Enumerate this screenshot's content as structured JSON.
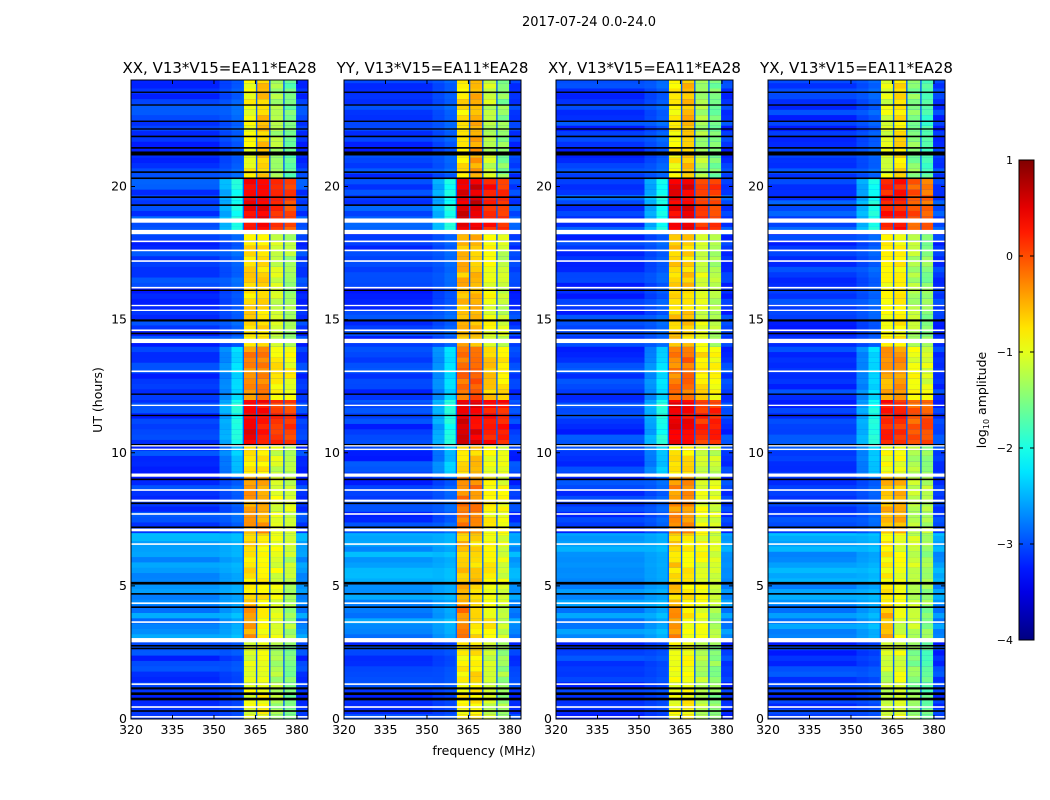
{
  "chart_data": {
    "type": "heatmap",
    "title": "2017-07-24 0.0-24.0",
    "xlabel": "frequency (MHz)",
    "ylabel": "UT (hours)",
    "xlim": [
      320,
      384
    ],
    "ylim": [
      0,
      24
    ],
    "xticks": [
      "320",
      "335",
      "350",
      "365",
      "380"
    ],
    "xtick_values": [
      320,
      335,
      350,
      365,
      380
    ],
    "yticks": [
      "0",
      "5",
      "10",
      "15",
      "20"
    ],
    "ytick_values": [
      0,
      5,
      10,
      15,
      20
    ],
    "colorbar": {
      "label": "log10 amplitude",
      "label_main": "log",
      "label_sub": "10",
      "label_rest": " amplitude",
      "range": [
        -4,
        1
      ],
      "ticks": [
        "−4",
        "−3",
        "−2",
        "−1",
        "0",
        "1"
      ],
      "tick_values": [
        -4,
        -3,
        -2,
        -1,
        0,
        1
      ],
      "colormap": "jet"
    },
    "panels": [
      {
        "title": "XX, V13*V15=EA11*EA28",
        "band_offset": 0.0
      },
      {
        "title": "YY, V13*V15=EA11*EA28",
        "band_offset": 0.15
      },
      {
        "title": "XY, V13*V15=EA11*EA28",
        "band_offset": 0.05
      },
      {
        "title": "YX, V13*V15=EA11*EA28",
        "band_offset": -0.15
      }
    ],
    "band_channels_mhz": [
      [
        360.6,
        365.4
      ],
      [
        365.4,
        370.2
      ],
      [
        370.2,
        375.3
      ],
      [
        375.3,
        379.9
      ]
    ],
    "edge_mhz": [
      352,
      360.6
    ],
    "segments": [
      {
        "t": [
          0,
          3.0
        ],
        "bg": -3.1,
        "edge": -3.0,
        "band": [
          -1.0,
          -0.9,
          -1.3,
          -1.5
        ]
      },
      {
        "t": [
          3.0,
          4.3
        ],
        "bg": -2.7,
        "edge": -2.5,
        "band": [
          -0.4,
          -0.9,
          -1.0,
          -1.3
        ]
      },
      {
        "t": [
          4.3,
          7.0
        ],
        "bg": -2.6,
        "edge": -2.5,
        "band": [
          -0.7,
          -0.8,
          -1.0,
          -1.2
        ]
      },
      {
        "t": [
          7.0,
          9.1
        ],
        "bg": -3.1,
        "edge": -2.9,
        "band": [
          -0.4,
          -0.4,
          -1.0,
          -1.1
        ]
      },
      {
        "t": [
          9.1,
          10.3
        ],
        "bg": -3.1,
        "edge": -2.4,
        "band": [
          -0.8,
          -0.8,
          -1.1,
          -1.2
        ]
      },
      {
        "t": [
          10.3,
          12.0
        ],
        "bg": -3.1,
        "edge": -2.0,
        "band": [
          0.4,
          0.3,
          0.1,
          0.1
        ]
      },
      {
        "t": [
          12.0,
          14.0
        ],
        "bg": -3.1,
        "edge": -2.3,
        "band": [
          -0.3,
          -0.2,
          -0.8,
          -0.9
        ]
      },
      {
        "t": [
          14.0,
          18.3
        ],
        "bg": -3.1,
        "edge": -2.9,
        "band": [
          -0.7,
          -0.7,
          -1.1,
          -1.3
        ]
      },
      {
        "t": [
          18.3,
          20.3
        ],
        "bg": -3.0,
        "edge": -2.0,
        "band": [
          0.4,
          0.4,
          0.1,
          0.0
        ]
      },
      {
        "t": [
          20.3,
          24.0
        ],
        "bg": -3.1,
        "edge": -2.9,
        "band": [
          -0.9,
          -0.6,
          -1.3,
          -1.6
        ]
      }
    ],
    "flagged_white_rows": [
      {
        "t": 0.08,
        "dt": 0.06
      },
      {
        "t": 0.45,
        "dt": 0.06
      },
      {
        "t": 1.31,
        "dt": 0.06
      },
      {
        "t": 2.96,
        "dt": 0.16
      },
      {
        "t": 3.64,
        "dt": 0.06
      },
      {
        "t": 4.35,
        "dt": 0.06
      },
      {
        "t": 6.57,
        "dt": 0.06
      },
      {
        "t": 7.1,
        "dt": 0.1
      },
      {
        "t": 7.7,
        "dt": 0.06
      },
      {
        "t": 8.2,
        "dt": 0.08
      },
      {
        "t": 8.6,
        "dt": 0.06
      },
      {
        "t": 9.16,
        "dt": 0.12
      },
      {
        "t": 10.13,
        "dt": 0.05
      },
      {
        "t": 10.26,
        "dt": 0.05
      },
      {
        "t": 11.78,
        "dt": 0.05
      },
      {
        "t": 13.06,
        "dt": 0.06
      },
      {
        "t": 14.2,
        "dt": 0.16
      },
      {
        "t": 14.6,
        "dt": 0.06
      },
      {
        "t": 15.35,
        "dt": 0.05
      },
      {
        "t": 15.53,
        "dt": 0.05
      },
      {
        "t": 16.2,
        "dt": 0.06
      },
      {
        "t": 17.2,
        "dt": 0.06
      },
      {
        "t": 17.6,
        "dt": 0.06
      },
      {
        "t": 17.94,
        "dt": 0.06
      },
      {
        "t": 18.29,
        "dt": 0.16
      },
      {
        "t": 18.72,
        "dt": 0.16
      }
    ],
    "flagged_black_rows": [
      {
        "t": 0.3,
        "dt": 0.06
      },
      {
        "t": 0.75,
        "dt": 0.1
      },
      {
        "t": 0.95,
        "dt": 0.1
      },
      {
        "t": 1.15,
        "dt": 0.08
      },
      {
        "t": 2.65,
        "dt": 0.06
      },
      {
        "t": 2.75,
        "dt": 0.06
      },
      {
        "t": 4.2,
        "dt": 0.06
      },
      {
        "t": 4.7,
        "dt": 0.06
      },
      {
        "t": 5.1,
        "dt": 0.1
      },
      {
        "t": 7.2,
        "dt": 0.06
      },
      {
        "t": 8.1,
        "dt": 0.06
      },
      {
        "t": 9.0,
        "dt": 0.06
      },
      {
        "t": 10.3,
        "dt": 0.06
      },
      {
        "t": 11.4,
        "dt": 0.05
      },
      {
        "t": 12.2,
        "dt": 0.05
      },
      {
        "t": 14.48,
        "dt": 0.06
      },
      {
        "t": 14.97,
        "dt": 0.08
      },
      {
        "t": 16.1,
        "dt": 0.05
      },
      {
        "t": 19.3,
        "dt": 0.06
      },
      {
        "t": 19.6,
        "dt": 0.06
      },
      {
        "t": 20.31,
        "dt": 0.06
      },
      {
        "t": 20.54,
        "dt": 0.06
      },
      {
        "t": 21.24,
        "dt": 0.15
      },
      {
        "t": 21.45,
        "dt": 0.06
      },
      {
        "t": 21.88,
        "dt": 0.06
      },
      {
        "t": 22.16,
        "dt": 0.05
      },
      {
        "t": 22.45,
        "dt": 0.05
      },
      {
        "t": 23.06,
        "dt": 0.05
      },
      {
        "t": 23.54,
        "dt": 0.05
      }
    ]
  }
}
